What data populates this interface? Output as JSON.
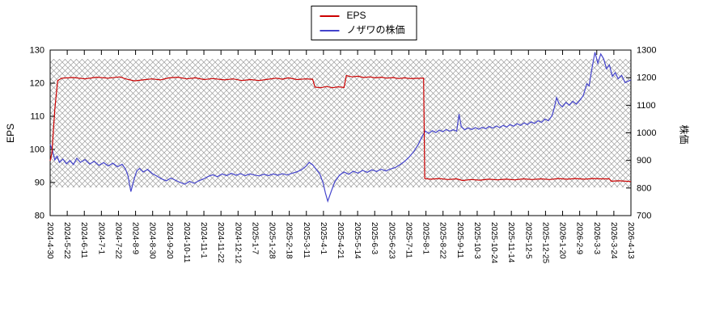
{
  "chart_data": {
    "type": "line",
    "title": "",
    "legend": {
      "position": "top-center"
    },
    "x_labels": [
      "2024-4-30",
      "2024-5-22",
      "2024-6-11",
      "2024-7-1",
      "2024-7-22",
      "2024-8-9",
      "2024-8-30",
      "2024-9-20",
      "2024-10-11",
      "2024-11-1",
      "2024-11-22",
      "2024-12-12",
      "2025-1-7",
      "2025-1-28",
      "2025-2-18",
      "2025-3-11",
      "2025-4-1",
      "2025-4-21",
      "2025-5-14",
      "2025-6-3",
      "2025-6-23",
      "2025-7-11",
      "2025-8-1",
      "2025-8-22",
      "2025-9-11",
      "2025-10-3",
      "2025-10-24",
      "2025-11-14",
      "2025-12-5",
      "2025-12-25",
      "2026-1-20",
      "2026-2-9",
      "2026-3-3",
      "2026-3-24",
      "2026-4-13"
    ],
    "left_axis": {
      "label": "EPS",
      "min": 80,
      "max": 130,
      "ticks": [
        80,
        90,
        100,
        110,
        120,
        130
      ]
    },
    "right_axis": {
      "label": "株価",
      "min": 700,
      "max": 1300,
      "ticks": [
        700,
        800,
        900,
        1000,
        1100,
        1200,
        1300
      ]
    },
    "hatch_band": {
      "axis": "left",
      "from": 88.5,
      "to": 127.3
    },
    "colors": {
      "eps": "#cc0000",
      "price": "#4444cc",
      "hatch": "#9d9d9d",
      "border": "#000000"
    },
    "series": [
      {
        "name": "EPS",
        "axis": "left",
        "color": "#cc0000",
        "points": [
          [
            0,
            96.5
          ],
          [
            0.003,
            99.0
          ],
          [
            0.008,
            112.0
          ],
          [
            0.013,
            120.8
          ],
          [
            0.02,
            121.5
          ],
          [
            0.04,
            121.7
          ],
          [
            0.06,
            121.3
          ],
          [
            0.08,
            121.8
          ],
          [
            0.1,
            121.5
          ],
          [
            0.12,
            121.9
          ],
          [
            0.13,
            121.3
          ],
          [
            0.145,
            120.7
          ],
          [
            0.16,
            121.0
          ],
          [
            0.175,
            121.3
          ],
          [
            0.19,
            121.0
          ],
          [
            0.205,
            121.6
          ],
          [
            0.22,
            121.8
          ],
          [
            0.235,
            121.3
          ],
          [
            0.25,
            121.6
          ],
          [
            0.265,
            121.1
          ],
          [
            0.28,
            121.4
          ],
          [
            0.3,
            121.0
          ],
          [
            0.315,
            121.3
          ],
          [
            0.33,
            120.8
          ],
          [
            0.345,
            121.1
          ],
          [
            0.36,
            120.8
          ],
          [
            0.375,
            121.2
          ],
          [
            0.39,
            121.5
          ],
          [
            0.4,
            121.2
          ],
          [
            0.41,
            121.6
          ],
          [
            0.425,
            121.1
          ],
          [
            0.44,
            121.3
          ],
          [
            0.452,
            121.2
          ],
          [
            0.456,
            118.8
          ],
          [
            0.466,
            118.6
          ],
          [
            0.476,
            119.0
          ],
          [
            0.486,
            118.6
          ],
          [
            0.496,
            118.9
          ],
          [
            0.506,
            118.7
          ],
          [
            0.51,
            122.3
          ],
          [
            0.52,
            121.9
          ],
          [
            0.53,
            122.1
          ],
          [
            0.54,
            121.7
          ],
          [
            0.55,
            121.9
          ],
          [
            0.56,
            121.6
          ],
          [
            0.57,
            121.8
          ],
          [
            0.58,
            121.5
          ],
          [
            0.59,
            121.7
          ],
          [
            0.6,
            121.4
          ],
          [
            0.61,
            121.6
          ],
          [
            0.62,
            121.4
          ],
          [
            0.643,
            121.5
          ],
          [
            0.645,
            91.2
          ],
          [
            0.655,
            91.0
          ],
          [
            0.67,
            91.2
          ],
          [
            0.685,
            90.9
          ],
          [
            0.7,
            91.1
          ],
          [
            0.71,
            90.6
          ],
          [
            0.725,
            90.9
          ],
          [
            0.74,
            90.7
          ],
          [
            0.755,
            91.0
          ],
          [
            0.77,
            90.8
          ],
          [
            0.785,
            91.0
          ],
          [
            0.8,
            90.8
          ],
          [
            0.815,
            91.1
          ],
          [
            0.83,
            90.9
          ],
          [
            0.845,
            91.1
          ],
          [
            0.86,
            90.9
          ],
          [
            0.875,
            91.2
          ],
          [
            0.89,
            91.0
          ],
          [
            0.905,
            91.2
          ],
          [
            0.92,
            91.0
          ],
          [
            0.935,
            91.2
          ],
          [
            0.95,
            91.1
          ],
          [
            0.963,
            91.1
          ],
          [
            0.966,
            90.4
          ],
          [
            0.98,
            90.5
          ],
          [
            1,
            90.3
          ]
        ]
      },
      {
        "name": "ノザワの株価",
        "axis": "right",
        "color": "#4444cc",
        "points": [
          [
            0,
            958
          ],
          [
            0.004,
            935
          ],
          [
            0.008,
            902
          ],
          [
            0.012,
            915
          ],
          [
            0.016,
            893
          ],
          [
            0.022,
            905
          ],
          [
            0.028,
            888
          ],
          [
            0.034,
            900
          ],
          [
            0.04,
            885
          ],
          [
            0.046,
            908
          ],
          [
            0.052,
            893
          ],
          [
            0.06,
            903
          ],
          [
            0.068,
            887
          ],
          [
            0.076,
            897
          ],
          [
            0.084,
            882
          ],
          [
            0.092,
            892
          ],
          [
            0.1,
            880
          ],
          [
            0.108,
            890
          ],
          [
            0.116,
            877
          ],
          [
            0.124,
            886
          ],
          [
            0.13,
            868
          ],
          [
            0.134,
            845
          ],
          [
            0.139,
            787
          ],
          [
            0.144,
            828
          ],
          [
            0.149,
            862
          ],
          [
            0.154,
            871
          ],
          [
            0.16,
            858
          ],
          [
            0.168,
            867
          ],
          [
            0.176,
            852
          ],
          [
            0.184,
            843
          ],
          [
            0.192,
            833
          ],
          [
            0.2,
            826
          ],
          [
            0.208,
            836
          ],
          [
            0.216,
            828
          ],
          [
            0.224,
            820
          ],
          [
            0.232,
            814
          ],
          [
            0.24,
            824
          ],
          [
            0.248,
            817
          ],
          [
            0.256,
            826
          ],
          [
            0.264,
            833
          ],
          [
            0.272,
            842
          ],
          [
            0.28,
            848
          ],
          [
            0.288,
            841
          ],
          [
            0.296,
            851
          ],
          [
            0.304,
            845
          ],
          [
            0.312,
            853
          ],
          [
            0.32,
            846
          ],
          [
            0.328,
            852
          ],
          [
            0.336,
            845
          ],
          [
            0.344,
            851
          ],
          [
            0.352,
            847
          ],
          [
            0.36,
            844
          ],
          [
            0.368,
            850
          ],
          [
            0.376,
            845
          ],
          [
            0.384,
            851
          ],
          [
            0.392,
            846
          ],
          [
            0.4,
            852
          ],
          [
            0.408,
            847
          ],
          [
            0.416,
            853
          ],
          [
            0.424,
            858
          ],
          [
            0.432,
            865
          ],
          [
            0.44,
            878
          ],
          [
            0.446,
            893
          ],
          [
            0.452,
            884
          ],
          [
            0.458,
            868
          ],
          [
            0.464,
            852
          ],
          [
            0.47,
            818
          ],
          [
            0.474,
            782
          ],
          [
            0.478,
            752
          ],
          [
            0.484,
            788
          ],
          [
            0.49,
            822
          ],
          [
            0.498,
            846
          ],
          [
            0.506,
            858
          ],
          [
            0.514,
            850
          ],
          [
            0.522,
            861
          ],
          [
            0.53,
            854
          ],
          [
            0.538,
            864
          ],
          [
            0.546,
            857
          ],
          [
            0.554,
            866
          ],
          [
            0.562,
            860
          ],
          [
            0.57,
            868
          ],
          [
            0.578,
            862
          ],
          [
            0.586,
            869
          ],
          [
            0.594,
            874
          ],
          [
            0.602,
            884
          ],
          [
            0.61,
            896
          ],
          [
            0.618,
            912
          ],
          [
            0.626,
            932
          ],
          [
            0.634,
            958
          ],
          [
            0.64,
            985
          ],
          [
            0.646,
            1006
          ],
          [
            0.652,
            998
          ],
          [
            0.658,
            1008
          ],
          [
            0.664,
            1001
          ],
          [
            0.67,
            1010
          ],
          [
            0.676,
            1004
          ],
          [
            0.682,
            1012
          ],
          [
            0.688,
            1006
          ],
          [
            0.694,
            1011
          ],
          [
            0.7,
            1006
          ],
          [
            0.704,
            1068
          ],
          [
            0.708,
            1022
          ],
          [
            0.714,
            1011
          ],
          [
            0.72,
            1018
          ],
          [
            0.726,
            1012
          ],
          [
            0.732,
            1019
          ],
          [
            0.738,
            1013
          ],
          [
            0.744,
            1020
          ],
          [
            0.75,
            1015
          ],
          [
            0.756,
            1023
          ],
          [
            0.762,
            1017
          ],
          [
            0.768,
            1025
          ],
          [
            0.774,
            1019
          ],
          [
            0.78,
            1027
          ],
          [
            0.786,
            1021
          ],
          [
            0.792,
            1030
          ],
          [
            0.798,
            1024
          ],
          [
            0.804,
            1033
          ],
          [
            0.81,
            1027
          ],
          [
            0.816,
            1036
          ],
          [
            0.822,
            1030
          ],
          [
            0.828,
            1040
          ],
          [
            0.834,
            1034
          ],
          [
            0.84,
            1044
          ],
          [
            0.846,
            1038
          ],
          [
            0.852,
            1050
          ],
          [
            0.858,
            1044
          ],
          [
            0.864,
            1062
          ],
          [
            0.868,
            1090
          ],
          [
            0.872,
            1128
          ],
          [
            0.876,
            1106
          ],
          [
            0.882,
            1094
          ],
          [
            0.888,
            1110
          ],
          [
            0.894,
            1100
          ],
          [
            0.9,
            1114
          ],
          [
            0.906,
            1104
          ],
          [
            0.912,
            1118
          ],
          [
            0.918,
            1135
          ],
          [
            0.924,
            1178
          ],
          [
            0.928,
            1170
          ],
          [
            0.933,
            1235
          ],
          [
            0.938,
            1292
          ],
          [
            0.943,
            1252
          ],
          [
            0.948,
            1286
          ],
          [
            0.953,
            1268
          ],
          [
            0.958,
            1232
          ],
          [
            0.963,
            1246
          ],
          [
            0.968,
            1205
          ],
          [
            0.973,
            1218
          ],
          [
            0.978,
            1196
          ],
          [
            0.984,
            1208
          ],
          [
            0.99,
            1182
          ],
          [
            1,
            1192
          ]
        ]
      }
    ]
  }
}
